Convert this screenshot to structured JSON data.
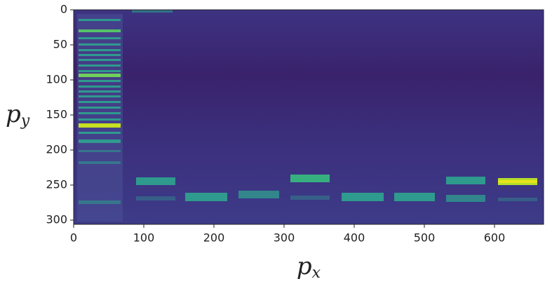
{
  "chart_data": {
    "type": "image",
    "xlabel": {
      "base": "p",
      "sub": "x"
    },
    "ylabel": {
      "base": "p",
      "sub": "y"
    },
    "xlim": [
      0,
      670
    ],
    "xticks": [
      0,
      100,
      200,
      300,
      400,
      500,
      600
    ],
    "ylim": [
      306,
      0
    ],
    "yticks": [
      0,
      50,
      100,
      150,
      200,
      250,
      300
    ]
  }
}
